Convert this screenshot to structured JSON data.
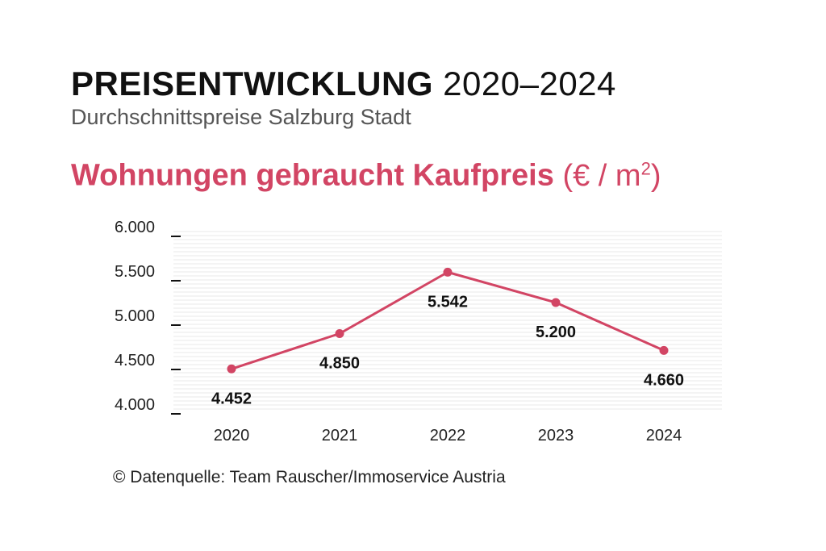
{
  "header": {
    "title_bold": "PREISENTWICKLUNG",
    "title_range": "2020–2024",
    "subtitle": "Durchschnittspreise Salzburg Stadt"
  },
  "chart_heading": {
    "label": "Wohnungen gebraucht Kaufpreis",
    "unit_prefix": "(€ / m",
    "unit_sup": "2",
    "unit_suffix": ")"
  },
  "footer": {
    "source": "© Datenquelle: Team Rauscher/Immoservice Austria"
  },
  "colors": {
    "accent": "#d24564",
    "text": "#111111",
    "gridline": "#e9e9e9"
  },
  "chart_data": {
    "type": "line",
    "x": [
      "2020",
      "2021",
      "2022",
      "2023",
      "2024"
    ],
    "values": [
      4452,
      4850,
      5542,
      5200,
      4660
    ],
    "value_labels": [
      "4.452",
      "4.850",
      "5.542",
      "5.200",
      "4.660"
    ],
    "yticks": [
      4000,
      4500,
      5000,
      5500,
      6000
    ],
    "ytick_labels": [
      "4.000",
      "4.500",
      "5.000",
      "5.500",
      "6.000"
    ],
    "ylim": [
      4000,
      6000
    ],
    "grid": true,
    "legend": "none"
  }
}
